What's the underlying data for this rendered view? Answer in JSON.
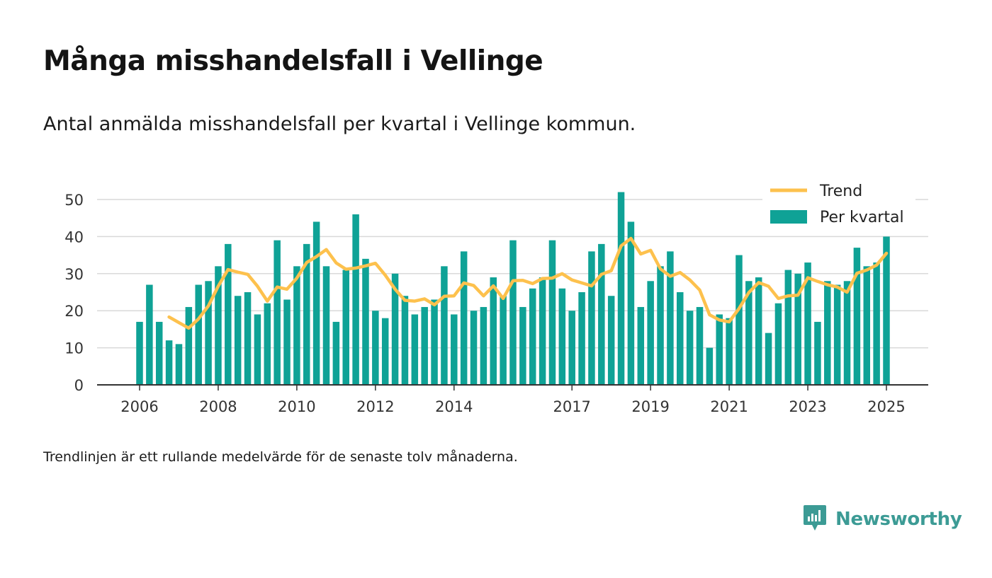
{
  "header": {
    "title": "Många misshandelsfall i Vellinge",
    "subtitle": "Antal anmälda misshandelsfall per kvartal i Vellinge kommun."
  },
  "footnote": "Trendlinjen är ett rullande medelvärde för de senaste tolv månaderna.",
  "brand": {
    "name": "Newsworthy",
    "icon": "newsworthy-logo-icon",
    "color": "#3c9b95"
  },
  "chart_data": {
    "type": "bar",
    "ylim": [
      0,
      50
    ],
    "y_ticks": [
      0,
      10,
      20,
      30,
      40,
      50
    ],
    "x_ticks": [
      "2006",
      "2008",
      "2010",
      "2012",
      "2014",
      "2017",
      "2019",
      "2021",
      "2023",
      "2025"
    ],
    "grid": true,
    "legend_position": "top-right",
    "colors": {
      "bars": "#0fa296",
      "trend": "#fdc14d"
    },
    "series": [
      {
        "name": "Per kvartal",
        "kind": "bar",
        "values": [
          17,
          27,
          17,
          12,
          11,
          21,
          27,
          28,
          32,
          38,
          24,
          25,
          19,
          22,
          39,
          23,
          32,
          38,
          44,
          32,
          17,
          31,
          46,
          34,
          20,
          18,
          30,
          24,
          19,
          21,
          23,
          32,
          19,
          36,
          20,
          21,
          29,
          24,
          39,
          21,
          26,
          29,
          39,
          26,
          20,
          25,
          36,
          38,
          24,
          52,
          44,
          21,
          28,
          32,
          36,
          25,
          20,
          21,
          10,
          19,
          18,
          35,
          28,
          29,
          14,
          22,
          31,
          30,
          33,
          17,
          28,
          27,
          28,
          37,
          32,
          33,
          40
        ]
      },
      {
        "name": "Trend",
        "kind": "line",
        "values": [
          null,
          null,
          null,
          18.3,
          16.8,
          15.3,
          17.8,
          21.3,
          26.6,
          31.1,
          30.4,
          29.8,
          26.6,
          22.6,
          26.4,
          25.8,
          28.8,
          33.0,
          34.6,
          36.5,
          32.9,
          31.2,
          31.5,
          32.1,
          32.8,
          29.6,
          25.8,
          22.8,
          22.6,
          23.2,
          21.6,
          23.9,
          24.0,
          27.5,
          26.8,
          24.0,
          26.7,
          23.3,
          28.1,
          28.2,
          27.3,
          28.7,
          28.8,
          30.0,
          28.3,
          27.5,
          26.7,
          29.8,
          30.8,
          37.5,
          39.5,
          35.3,
          36.3,
          31.3,
          29.3,
          30.3,
          28.3,
          25.6,
          18.9,
          17.5,
          17.0,
          20.6,
          24.9,
          27.6,
          26.6,
          23.3,
          24.0,
          24.2,
          28.9,
          27.9,
          27.0,
          26.4,
          25.0,
          30.1,
          31.0,
          32.3,
          35.5
        ]
      }
    ]
  }
}
